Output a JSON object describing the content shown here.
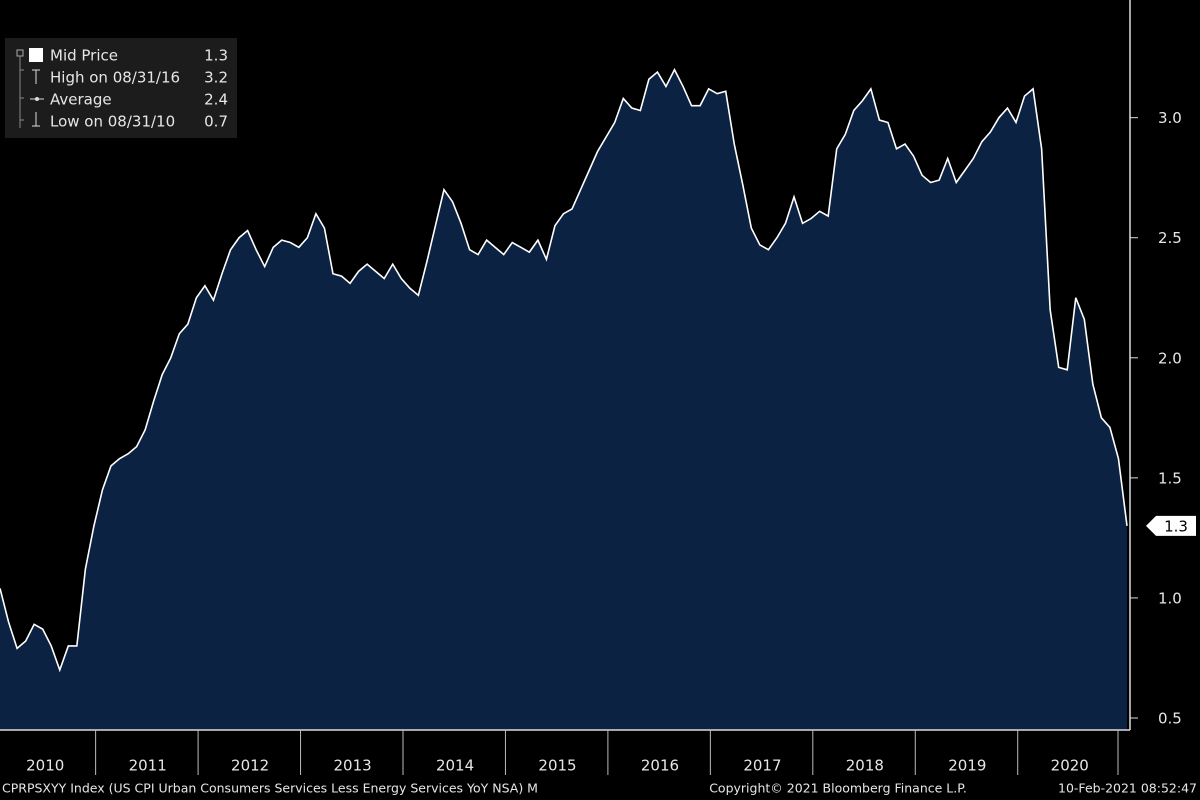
{
  "chart_data": {
    "type": "area",
    "categories": [
      null,
      null,
      null,
      null,
      null,
      null,
      "2010",
      null,
      null,
      null,
      null,
      null,
      null,
      null,
      null,
      null,
      null,
      null,
      "2011",
      null,
      null,
      null,
      null,
      null,
      null,
      null,
      null,
      null,
      null,
      null,
      "2012",
      null,
      null,
      null,
      null,
      null,
      null,
      null,
      null,
      null,
      null,
      null,
      "2013",
      null,
      null,
      null,
      null,
      null,
      null,
      null,
      null,
      null,
      null,
      null,
      "2014",
      null,
      null,
      null,
      null,
      null,
      null,
      null,
      null,
      null,
      null,
      null,
      "2015",
      null,
      null,
      null,
      null,
      null,
      null,
      null,
      null,
      null,
      null,
      null,
      "2016",
      null,
      null,
      null,
      null,
      null,
      null,
      null,
      null,
      null,
      null,
      null,
      "2017",
      null,
      null,
      null,
      null,
      null,
      null,
      null,
      null,
      null,
      null,
      null,
      "2018",
      null,
      null,
      null,
      null,
      null,
      null,
      null,
      null,
      null,
      null,
      null,
      "2019",
      null,
      null,
      null,
      null,
      null,
      null,
      null,
      null,
      null,
      null,
      null,
      "2020",
      null,
      null,
      null,
      null,
      null,
      null
    ],
    "series": [
      {
        "name": "Mid Price",
        "color": "#ffffff",
        "fill": "#0c2242",
        "values": [
          1.04,
          0.9,
          0.79,
          0.82,
          0.89,
          0.87,
          0.8,
          0.7,
          0.8,
          0.8,
          1.12,
          1.3,
          1.45,
          1.55,
          1.58,
          1.6,
          1.63,
          1.7,
          1.82,
          1.93,
          2.0,
          2.1,
          2.14,
          2.25,
          2.3,
          2.24,
          2.35,
          2.45,
          2.5,
          2.53,
          2.45,
          2.38,
          2.46,
          2.49,
          2.48,
          2.46,
          2.5,
          2.6,
          2.54,
          2.35,
          2.34,
          2.31,
          2.36,
          2.39,
          2.36,
          2.33,
          2.39,
          2.33,
          2.29,
          2.26,
          2.4,
          2.55,
          2.7,
          2.65,
          2.56,
          2.45,
          2.43,
          2.49,
          2.46,
          2.43,
          2.48,
          2.46,
          2.44,
          2.49,
          2.41,
          2.55,
          2.6,
          2.62,
          2.7,
          2.78,
          2.86,
          2.92,
          2.98,
          3.08,
          3.04,
          3.03,
          3.16,
          3.19,
          3.13,
          3.2,
          3.13,
          3.05,
          3.05,
          3.12,
          3.1,
          3.11,
          2.89,
          2.72,
          2.54,
          2.47,
          2.45,
          2.5,
          2.56,
          2.67,
          2.56,
          2.58,
          2.61,
          2.59,
          2.87,
          2.93,
          3.03,
          3.07,
          3.12,
          2.99,
          2.98,
          2.87,
          2.89,
          2.84,
          2.76,
          2.73,
          2.74,
          2.83,
          2.73,
          2.78,
          2.83,
          2.9,
          2.94,
          3.0,
          3.04,
          2.98,
          3.09,
          3.12,
          2.87,
          2.2,
          1.96,
          1.95,
          2.25,
          2.16,
          1.89,
          1.75,
          1.71,
          1.58,
          1.3
        ]
      }
    ],
    "stats": [
      {
        "label": "High on 08/31/16",
        "value": 3.2
      },
      {
        "label": "Average",
        "value": 2.4
      },
      {
        "label": "Low on 08/31/10",
        "value": 0.7
      }
    ],
    "ylim": [
      0.45,
      3.49
    ],
    "yticks": [
      0.5,
      {
        "value": 1.0,
        "label": "1.0"
      },
      1.5,
      {
        "value": 2.0,
        "label": "2.0"
      },
      2.5,
      {
        "value": 3.0,
        "label": "3.0"
      }
    ],
    "footer": {
      "left": "CPRPSXYY Index (US CPI Urban Consumers Services Less Energy Services YoY NSA)  M",
      "center": "Copyright© 2021 Bloomberg Finance L.P.",
      "right": "10-Feb-2021 08:52:47"
    }
  }
}
